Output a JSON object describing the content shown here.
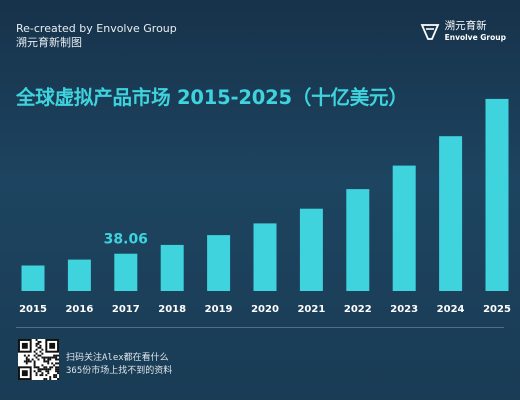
{
  "header": {
    "credit_line1": "Re-created by Envolve Group",
    "credit_line2": "溯元育新制图",
    "brand_cn": "溯元育新",
    "brand_en": "Envolve Group"
  },
  "title": "全球虚拟产品市场 2015-2025（十亿美元）",
  "colors": {
    "bar": "#3fd3dd",
    "label": "#3fd3dd",
    "tick": "#ffffff",
    "title": "#3fd3dd"
  },
  "chart_data": {
    "type": "bar",
    "title": "全球虚拟产品市场 2015-2025（十亿美元）",
    "categories": [
      "2015",
      "2016",
      "2017",
      "2018",
      "2019",
      "2020",
      "2021",
      "2022",
      "2023",
      "2024",
      "2025"
    ],
    "values": [
      26,
      32,
      38.06,
      47,
      57,
      69,
      84,
      104,
      128,
      158,
      196
    ],
    "data_labels": [
      {
        "index": 2,
        "text": "38.06"
      }
    ],
    "ylim": [
      0,
      200
    ],
    "grid": false,
    "legend": "none"
  },
  "footer": {
    "line1": "扫码关注Alex都在看什么",
    "line2": "365份市场上找不到的资料"
  }
}
